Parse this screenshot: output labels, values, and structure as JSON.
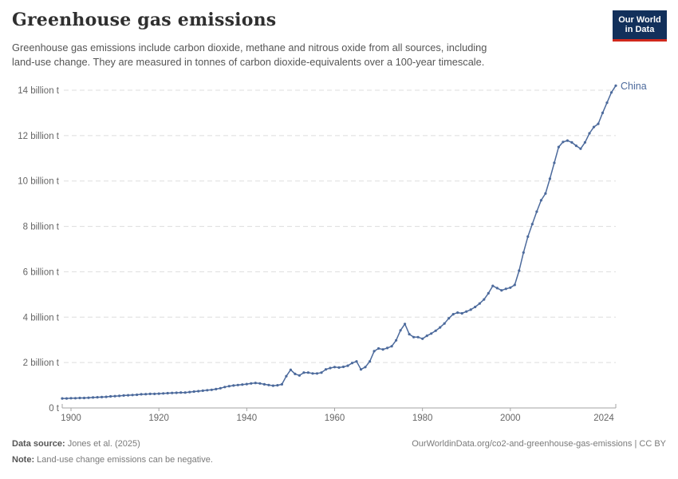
{
  "header": {
    "title": "Greenhouse gas emissions",
    "subtitle_line1": "Greenhouse gas emissions include carbon dioxide, methane and nitrous oxide from all sources, including",
    "subtitle_line2": "land-use change. They are measured in tonnes of carbon dioxide-equivalents over a 100-year timescale.",
    "logo_line1": "Our World",
    "logo_line2": "in Data",
    "logo_bg_color": "#12305b",
    "logo_accent_color": "#d0281c"
  },
  "chart_data": {
    "type": "line",
    "title": "Greenhouse gas emissions",
    "xlabel": "",
    "ylabel": "billion t",
    "xlim": [
      1898,
      2024
    ],
    "ylim": [
      0,
      14
    ],
    "grid": true,
    "legend_position": "end-of-line",
    "line_color": "#4c6a9c",
    "grid_color": "#dddddd",
    "axis_color": "#a3a3a3",
    "tick_label_color": "#666666",
    "x_ticks": [
      1900,
      1920,
      1940,
      1960,
      1980,
      2000,
      2024
    ],
    "y_ticks": [
      {
        "value": 0,
        "label": "0 t"
      },
      {
        "value": 2,
        "label": "2 billion t"
      },
      {
        "value": 4,
        "label": "4 billion t"
      },
      {
        "value": 6,
        "label": "6 billion t"
      },
      {
        "value": 8,
        "label": "8 billion t"
      },
      {
        "value": 10,
        "label": "10 billion t"
      },
      {
        "value": 12,
        "label": "12 billion t"
      },
      {
        "value": 14,
        "label": "14 billion t"
      }
    ],
    "series": [
      {
        "name": "China",
        "start_year": 1898,
        "end_year": 2024,
        "values": [
          0.42,
          0.42,
          0.43,
          0.43,
          0.44,
          0.44,
          0.45,
          0.46,
          0.47,
          0.48,
          0.49,
          0.51,
          0.52,
          0.53,
          0.55,
          0.56,
          0.57,
          0.58,
          0.6,
          0.61,
          0.62,
          0.62,
          0.63,
          0.64,
          0.65,
          0.66,
          0.67,
          0.68,
          0.68,
          0.7,
          0.72,
          0.74,
          0.76,
          0.78,
          0.8,
          0.83,
          0.87,
          0.92,
          0.96,
          0.99,
          1.01,
          1.03,
          1.05,
          1.08,
          1.1,
          1.08,
          1.04,
          1.01,
          0.98,
          1.0,
          1.04,
          1.4,
          1.68,
          1.5,
          1.43,
          1.56,
          1.56,
          1.52,
          1.52,
          1.56,
          1.7,
          1.76,
          1.8,
          1.78,
          1.81,
          1.86,
          1.98,
          2.05,
          1.7,
          1.8,
          2.05,
          2.5,
          2.62,
          2.58,
          2.64,
          2.72,
          2.98,
          3.42,
          3.7,
          3.25,
          3.12,
          3.12,
          3.05,
          3.18,
          3.28,
          3.4,
          3.55,
          3.72,
          3.95,
          4.13,
          4.2,
          4.17,
          4.25,
          4.33,
          4.45,
          4.6,
          4.78,
          5.05,
          5.38,
          5.28,
          5.18,
          5.25,
          5.3,
          5.42,
          6.05,
          6.85,
          7.55,
          8.1,
          8.65,
          9.15,
          9.45,
          10.1,
          10.8,
          11.5,
          11.72,
          11.78,
          11.7,
          11.55,
          11.42,
          11.7,
          12.1,
          12.38,
          12.52,
          13.0,
          13.45,
          13.9,
          14.2
        ]
      }
    ]
  },
  "footer": {
    "source_label": "Data source:",
    "source_value": " Jones et al. (2025)",
    "note_label": "Note:",
    "note_value": " Land-use change emissions can be negative.",
    "citation": "OurWorldinData.org/co2-and-greenhouse-gas-emissions | CC BY"
  }
}
